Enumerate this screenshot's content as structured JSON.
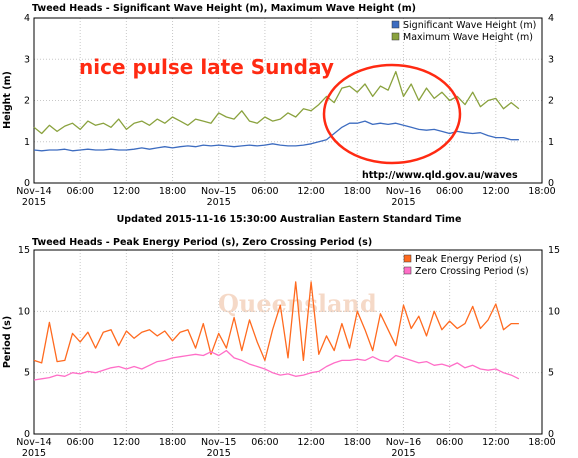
{
  "updated_text": "Updated 2015-11-16 15:30:00 Australian Eastern Standard Time",
  "source_text": "http://www.qld.gov.au/waves",
  "annotation_text": "nice pulse late Sunday",
  "watermark_text": "Queensland",
  "x_ticks": [
    "Nov–14\n2015",
    "06:00",
    "12:00",
    "18:00",
    "Nov–15\n2015",
    "06:00",
    "12:00",
    "18:00",
    "Nov–16\n2015",
    "06:00",
    "12:00",
    "18:00"
  ],
  "colors": {
    "series_blue": "#3d6cc0",
    "series_green": "#8aa23e",
    "series_orange": "#ff6a1f",
    "series_pink": "#ff6ec7",
    "annotation": "#ff2a12"
  },
  "chart_data": [
    {
      "type": "line",
      "title": "Tweed Heads - Significant Wave Height (m), Maximum Wave Height (m)",
      "ylabel": "Height (m)",
      "xlabel": "",
      "ylim": [
        0,
        4
      ],
      "xlim_hours": [
        0,
        66
      ],
      "yticks": [
        0,
        1,
        2,
        3,
        4
      ],
      "grid": true,
      "legend": "top-right",
      "series": [
        {
          "name": "Significant Wave Height (m)",
          "color": "#3d6cc0",
          "x": [
            0,
            1,
            2,
            3,
            4,
            5,
            6,
            7,
            8,
            9,
            10,
            11,
            12,
            13,
            14,
            15,
            16,
            17,
            18,
            19,
            20,
            21,
            22,
            23,
            24,
            25,
            26,
            27,
            28,
            29,
            30,
            31,
            32,
            33,
            34,
            35,
            36,
            37,
            38,
            39,
            40,
            41,
            42,
            43,
            44,
            45,
            46,
            47,
            48,
            49,
            50,
            51,
            52,
            53,
            54,
            55,
            56,
            57,
            58,
            59,
            60,
            61,
            62,
            63
          ],
          "y": [
            0.8,
            0.78,
            0.8,
            0.8,
            0.82,
            0.78,
            0.8,
            0.82,
            0.8,
            0.8,
            0.82,
            0.8,
            0.8,
            0.82,
            0.85,
            0.82,
            0.85,
            0.88,
            0.85,
            0.88,
            0.9,
            0.88,
            0.92,
            0.9,
            0.92,
            0.9,
            0.88,
            0.9,
            0.92,
            0.9,
            0.92,
            0.95,
            0.92,
            0.9,
            0.9,
            0.92,
            0.95,
            1.0,
            1.05,
            1.2,
            1.35,
            1.45,
            1.45,
            1.5,
            1.42,
            1.45,
            1.42,
            1.45,
            1.4,
            1.35,
            1.3,
            1.28,
            1.3,
            1.25,
            1.2,
            1.25,
            1.22,
            1.2,
            1.22,
            1.15,
            1.1,
            1.1,
            1.05,
            1.05
          ]
        },
        {
          "name": "Maximum Wave Height (m)",
          "color": "#8aa23e",
          "x": [
            0,
            1,
            2,
            3,
            4,
            5,
            6,
            7,
            8,
            9,
            10,
            11,
            12,
            13,
            14,
            15,
            16,
            17,
            18,
            19,
            20,
            21,
            22,
            23,
            24,
            25,
            26,
            27,
            28,
            29,
            30,
            31,
            32,
            33,
            34,
            35,
            36,
            37,
            38,
            39,
            40,
            41,
            42,
            43,
            44,
            45,
            46,
            47,
            48,
            49,
            50,
            51,
            52,
            53,
            54,
            55,
            56,
            57,
            58,
            59,
            60,
            61,
            62,
            63
          ],
          "y": [
            1.35,
            1.2,
            1.4,
            1.25,
            1.38,
            1.45,
            1.3,
            1.5,
            1.4,
            1.45,
            1.35,
            1.55,
            1.3,
            1.45,
            1.5,
            1.4,
            1.55,
            1.45,
            1.6,
            1.5,
            1.4,
            1.55,
            1.5,
            1.45,
            1.7,
            1.6,
            1.55,
            1.75,
            1.5,
            1.45,
            1.6,
            1.5,
            1.55,
            1.7,
            1.6,
            1.8,
            1.75,
            1.9,
            2.1,
            1.95,
            2.3,
            2.35,
            2.2,
            2.4,
            2.1,
            2.35,
            2.25,
            2.7,
            2.1,
            2.4,
            2.0,
            2.3,
            2.05,
            2.2,
            2.0,
            2.1,
            1.9,
            2.2,
            1.85,
            2.0,
            2.05,
            1.8,
            1.95,
            1.8
          ]
        }
      ]
    },
    {
      "type": "line",
      "title": "Tweed Heads - Peak Energy Period (s), Zero Crossing Period (s)",
      "ylabel": "Period (s)",
      "xlabel": "",
      "ylim": [
        0,
        15
      ],
      "xlim_hours": [
        0,
        66
      ],
      "yticks": [
        0,
        5,
        10,
        15
      ],
      "grid": true,
      "legend": "top-right",
      "series": [
        {
          "name": "Peak Energy Period (s)",
          "color": "#ff6a1f",
          "x": [
            0,
            1,
            2,
            3,
            4,
            5,
            6,
            7,
            8,
            9,
            10,
            11,
            12,
            13,
            14,
            15,
            16,
            17,
            18,
            19,
            20,
            21,
            22,
            23,
            24,
            25,
            26,
            27,
            28,
            29,
            30,
            31,
            32,
            33,
            34,
            35,
            36,
            37,
            38,
            39,
            40,
            41,
            42,
            43,
            44,
            45,
            46,
            47,
            48,
            49,
            50,
            51,
            52,
            53,
            54,
            55,
            56,
            57,
            58,
            59,
            60,
            61,
            62,
            63
          ],
          "y": [
            6.0,
            5.8,
            9.1,
            5.9,
            6.0,
            8.2,
            7.5,
            8.3,
            7.0,
            8.3,
            8.5,
            7.2,
            8.4,
            7.8,
            8.3,
            8.5,
            8.0,
            8.4,
            7.6,
            8.3,
            8.5,
            7.0,
            9.0,
            6.5,
            8.2,
            7.0,
            9.5,
            6.8,
            9.3,
            7.5,
            6.0,
            8.5,
            10.5,
            6.2,
            12.4,
            6.0,
            12.4,
            6.5,
            8.0,
            6.8,
            9.0,
            7.0,
            10.0,
            8.5,
            6.8,
            9.8,
            8.5,
            7.2,
            10.5,
            8.6,
            9.6,
            8.0,
            10.0,
            8.5,
            9.2,
            8.6,
            9.0,
            10.4,
            8.6,
            9.3,
            10.6,
            8.5,
            9.0,
            9.0
          ]
        },
        {
          "name": "Zero Crossing Period (s)",
          "color": "#ff6ec7",
          "x": [
            0,
            1,
            2,
            3,
            4,
            5,
            6,
            7,
            8,
            9,
            10,
            11,
            12,
            13,
            14,
            15,
            16,
            17,
            18,
            19,
            20,
            21,
            22,
            23,
            24,
            25,
            26,
            27,
            28,
            29,
            30,
            31,
            32,
            33,
            34,
            35,
            36,
            37,
            38,
            39,
            40,
            41,
            42,
            43,
            44,
            45,
            46,
            47,
            48,
            49,
            50,
            51,
            52,
            53,
            54,
            55,
            56,
            57,
            58,
            59,
            60,
            61,
            62,
            63
          ],
          "y": [
            4.4,
            4.5,
            4.6,
            4.8,
            4.7,
            5.0,
            4.9,
            5.1,
            5.0,
            5.2,
            5.4,
            5.5,
            5.3,
            5.5,
            5.3,
            5.6,
            5.9,
            6.0,
            6.2,
            6.3,
            6.4,
            6.5,
            6.4,
            6.7,
            6.4,
            6.8,
            6.2,
            6.0,
            5.7,
            5.5,
            5.3,
            5.0,
            4.8,
            4.9,
            4.7,
            4.8,
            5.0,
            5.1,
            5.5,
            5.8,
            6.0,
            6.0,
            6.1,
            6.0,
            6.3,
            6.0,
            5.9,
            6.4,
            6.2,
            6.0,
            5.8,
            5.9,
            5.6,
            5.7,
            5.5,
            5.8,
            5.4,
            5.6,
            5.3,
            5.2,
            5.3,
            5.0,
            4.8,
            4.5
          ]
        }
      ]
    }
  ]
}
